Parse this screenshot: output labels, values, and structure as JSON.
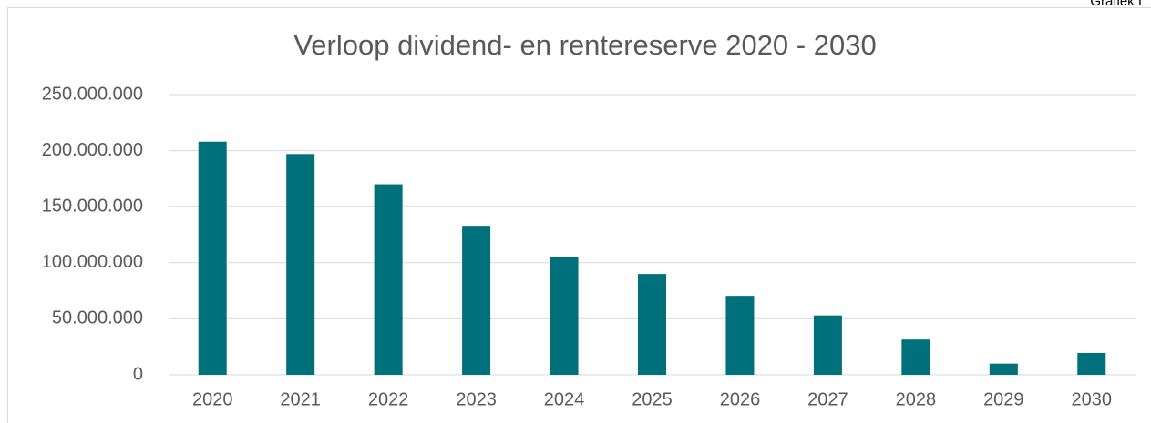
{
  "chart_data": {
    "type": "bar",
    "title": "Verloop dividend- en rentereserve 2020 - 2030",
    "corner_label": "Grafiek I",
    "categories": [
      "2020",
      "2021",
      "2022",
      "2023",
      "2024",
      "2025",
      "2026",
      "2027",
      "2028",
      "2029",
      "2030"
    ],
    "values": [
      208000000,
      197000000,
      170000000,
      133000000,
      105500000,
      90000000,
      70500000,
      53000000,
      31500000,
      10000000,
      19500000
    ],
    "color": "#00707a",
    "ylim": [
      0,
      250000000
    ],
    "yticks": [
      0,
      {
        "value": 50000000,
        "label": "50.000.000"
      },
      {
        "value": 100000000,
        "label": "100.000.000"
      },
      {
        "value": 150000000,
        "label": "150.000.000"
      },
      {
        "value": 200000000,
        "label": "200.000.000"
      },
      {
        "value": 250000000,
        "label": "250.000.000"
      }
    ],
    "grid": true
  }
}
